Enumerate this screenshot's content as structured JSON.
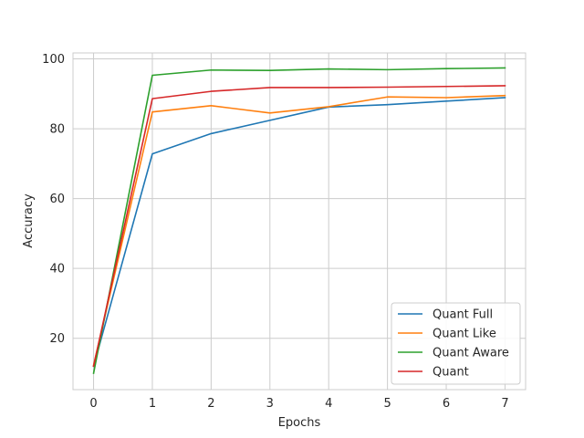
{
  "chart_data": {
    "type": "line",
    "title": "",
    "xlabel": "Epochs",
    "ylabel": "Accuracy",
    "x": [
      0,
      1,
      2,
      3,
      4,
      5,
      6,
      7
    ],
    "xticks": [
      "0",
      "1",
      "2",
      "3",
      "4",
      "5",
      "6",
      "7"
    ],
    "yticks": [
      "20",
      "40",
      "60",
      "80",
      "100"
    ],
    "xlim": [
      -0.35,
      7.35
    ],
    "ylim": [
      5.3,
      101.7
    ],
    "grid": true,
    "legend_position": "bottom-right",
    "series": [
      {
        "name": "Quant Full",
        "color": "#1f77b4",
        "values": [
          12.0,
          72.8,
          78.6,
          82.4,
          86.2,
          86.9,
          87.9,
          88.9
        ]
      },
      {
        "name": "Quant Like",
        "color": "#ff7f0e",
        "values": [
          12.3,
          84.8,
          86.6,
          84.5,
          86.3,
          89.1,
          88.9,
          89.5
        ]
      },
      {
        "name": "Quant Aware",
        "color": "#2ca02c",
        "values": [
          10.0,
          95.3,
          96.8,
          96.7,
          97.1,
          96.9,
          97.2,
          97.4
        ]
      },
      {
        "name": "Quant",
        "color": "#d62728",
        "values": [
          12.0,
          88.6,
          90.7,
          91.8,
          91.8,
          91.9,
          92.1,
          92.3
        ]
      }
    ]
  }
}
